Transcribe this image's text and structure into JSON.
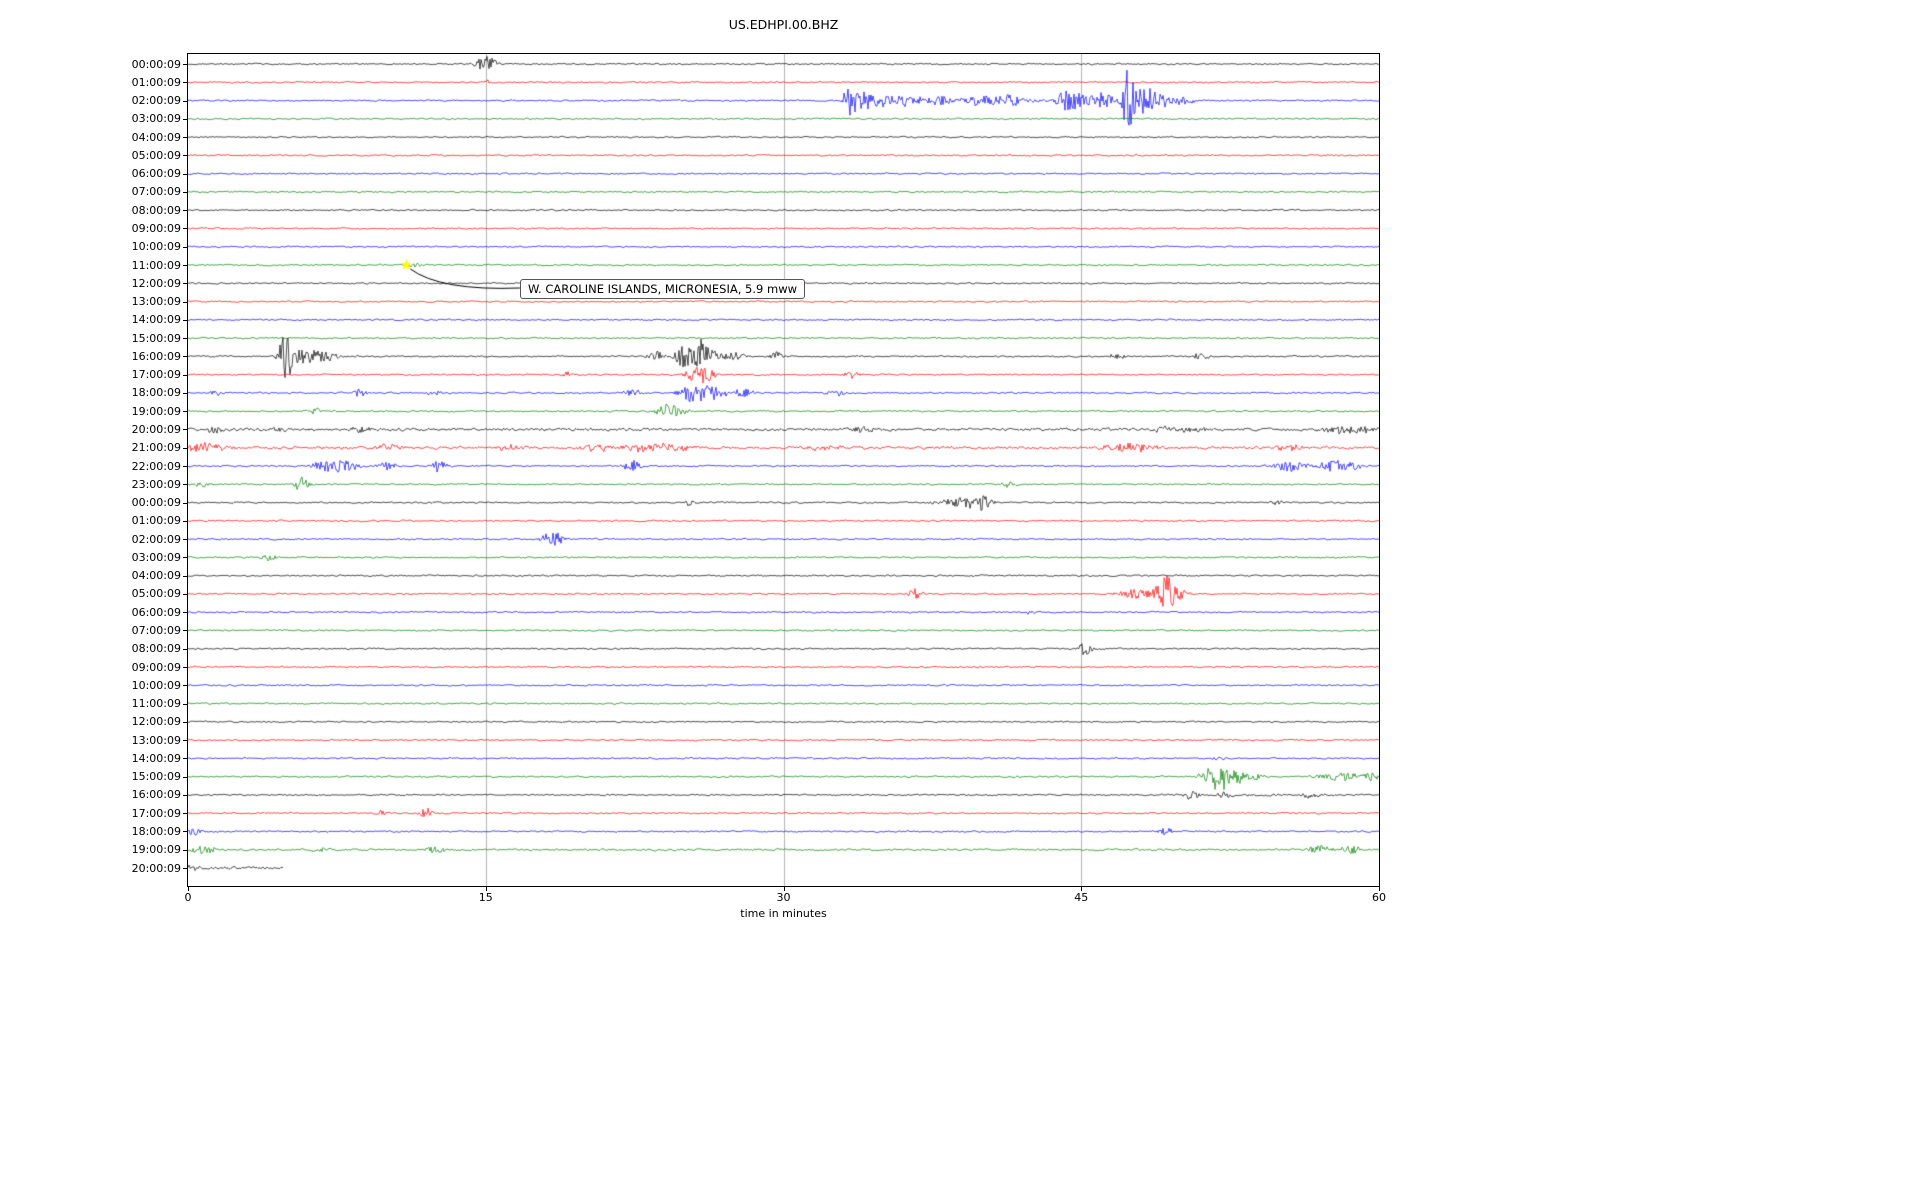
{
  "title": "US.EDHPI.00.BHZ",
  "xlabel": "time in minutes",
  "annotation": {
    "text": "W. CAROLINE ISLANDS, MICRONESIA, 5.9 mww",
    "row": 11,
    "t_minutes": 11,
    "marker": "star-icon",
    "marker_color": "#ffff00"
  },
  "chart_data": {
    "type": "line",
    "subtype": "helicorder-dayplot",
    "station": "US.EDHPI.00.BHZ",
    "xlim": [
      0,
      60
    ],
    "x_ticks": [
      0,
      15,
      30,
      45,
      60
    ],
    "grid_x": [
      15,
      30,
      45
    ],
    "trace_color_cycle": [
      "#000000",
      "#ff0000",
      "#0000ff",
      "#008000"
    ],
    "rows": [
      {
        "label": "00:00:09",
        "color": "#000000",
        "events": [
          {
            "t": 14.9,
            "a": 7,
            "w": 0.3
          },
          {
            "t": 15.3,
            "a": 5,
            "w": 0.2
          }
        ]
      },
      {
        "label": "01:00:09",
        "color": "#ff0000",
        "events": [
          {
            "t": 15.1,
            "a": 2,
            "w": 0.15
          }
        ]
      },
      {
        "label": "02:00:09",
        "color": "#0000ff",
        "bands": [
          {
            "f": 32.5,
            "to": 51,
            "m": 2.0
          }
        ],
        "events": [
          {
            "t": 33.3,
            "a": 30,
            "w": 0.15
          },
          {
            "t": 33.8,
            "a": 8,
            "w": 0.4
          },
          {
            "t": 34.8,
            "a": 6,
            "w": 0.6
          },
          {
            "t": 36.2,
            "a": 5,
            "w": 0.5
          },
          {
            "t": 37.8,
            "a": 5,
            "w": 0.5
          },
          {
            "t": 39.7,
            "a": 8,
            "w": 0.4
          },
          {
            "t": 41.3,
            "a": 6,
            "w": 0.6
          },
          {
            "t": 44.3,
            "a": 11,
            "w": 0.4
          },
          {
            "t": 45.0,
            "a": 6,
            "w": 0.5
          },
          {
            "t": 46.2,
            "a": 10,
            "w": 0.3
          },
          {
            "t": 47.35,
            "a": 34,
            "w": 0.18
          },
          {
            "t": 48.0,
            "a": 12,
            "w": 0.4
          },
          {
            "t": 48.7,
            "a": 8,
            "w": 0.4
          },
          {
            "t": 49.8,
            "a": 4,
            "w": 0.6
          }
        ]
      },
      {
        "label": "03:00:09",
        "color": "#008000",
        "events": []
      },
      {
        "label": "04:00:09",
        "color": "#000000",
        "events": []
      },
      {
        "label": "05:00:09",
        "color": "#ff0000",
        "events": []
      },
      {
        "label": "06:00:09",
        "color": "#0000ff",
        "events": []
      },
      {
        "label": "07:00:09",
        "color": "#008000",
        "events": []
      },
      {
        "label": "08:00:09",
        "color": "#000000",
        "events": []
      },
      {
        "label": "09:00:09",
        "color": "#ff0000",
        "events": []
      },
      {
        "label": "10:00:09",
        "color": "#0000ff",
        "events": []
      },
      {
        "label": "11:00:09",
        "color": "#008000",
        "events": [
          {
            "t": 11.3,
            "a": 2,
            "w": 0.5
          }
        ]
      },
      {
        "label": "12:00:09",
        "color": "#000000",
        "events": []
      },
      {
        "label": "13:00:09",
        "color": "#ff0000",
        "events": []
      },
      {
        "label": "14:00:09",
        "color": "#0000ff",
        "events": []
      },
      {
        "label": "15:00:09",
        "color": "#008000",
        "events": []
      },
      {
        "label": "16:00:09",
        "color": "#000000",
        "bands": [
          {
            "f": 4.5,
            "to": 9,
            "m": 1.5
          }
        ],
        "events": [
          {
            "t": 4.9,
            "a": 24,
            "w": 0.2
          },
          {
            "t": 5.3,
            "a": 8,
            "w": 0.4
          },
          {
            "t": 6.2,
            "a": 5,
            "w": 0.5
          },
          {
            "t": 7.0,
            "a": 4,
            "w": 0.4
          },
          {
            "t": 23.5,
            "a": 6,
            "w": 0.3
          },
          {
            "t": 25.0,
            "a": 12,
            "w": 0.3
          },
          {
            "t": 25.8,
            "a": 16,
            "w": 0.25
          },
          {
            "t": 26.4,
            "a": 7,
            "w": 0.3
          },
          {
            "t": 27.5,
            "a": 4,
            "w": 0.4
          },
          {
            "t": 29.7,
            "a": 4,
            "w": 0.3
          },
          {
            "t": 46.8,
            "a": 3,
            "w": 0.3
          },
          {
            "t": 51.0,
            "a": 3,
            "w": 0.3
          }
        ]
      },
      {
        "label": "17:00:09",
        "color": "#ff0000",
        "events": [
          {
            "t": 19.0,
            "a": 3,
            "w": 0.2
          },
          {
            "t": 25.6,
            "a": 7,
            "w": 0.4
          },
          {
            "t": 26.2,
            "a": 5,
            "w": 0.3
          },
          {
            "t": 33.4,
            "a": 5,
            "w": 0.25
          }
        ]
      },
      {
        "label": "18:00:09",
        "color": "#0000ff",
        "events": [
          {
            "t": 1.4,
            "a": 3,
            "w": 0.2
          },
          {
            "t": 8.6,
            "a": 4,
            "w": 0.3
          },
          {
            "t": 12.4,
            "a": 3,
            "w": 0.25
          },
          {
            "t": 22.4,
            "a": 4,
            "w": 0.3
          },
          {
            "t": 25.5,
            "a": 10,
            "w": 0.5
          },
          {
            "t": 26.6,
            "a": 6,
            "w": 0.4
          },
          {
            "t": 28.0,
            "a": 4,
            "w": 0.4
          },
          {
            "t": 32.6,
            "a": 4,
            "w": 0.3
          }
        ]
      },
      {
        "label": "19:00:09",
        "color": "#008000",
        "events": [
          {
            "t": 6.4,
            "a": 4,
            "w": 0.2
          },
          {
            "t": 24.0,
            "a": 8,
            "w": 0.3
          },
          {
            "t": 24.7,
            "a": 5,
            "w": 0.3
          }
        ]
      },
      {
        "label": "20:00:09",
        "color": "#000000",
        "bands": [
          {
            "f": 0,
            "to": 60,
            "m": 1.8
          }
        ],
        "events": [
          {
            "t": 1.3,
            "a": 4,
            "w": 0.3
          },
          {
            "t": 4.6,
            "a": 3,
            "w": 0.3
          },
          {
            "t": 8.7,
            "a": 4,
            "w": 0.3
          },
          {
            "t": 34.0,
            "a": 4,
            "w": 0.4
          },
          {
            "t": 50.0,
            "a": 3,
            "w": 1.2
          },
          {
            "t": 58.5,
            "a": 4,
            "w": 1.0
          }
        ]
      },
      {
        "label": "21:00:09",
        "color": "#ff0000",
        "bands": [
          {
            "f": 0,
            "to": 60,
            "m": 1.8
          }
        ],
        "events": [
          {
            "t": 0.8,
            "a": 5,
            "w": 0.8
          },
          {
            "t": 10.0,
            "a": 4,
            "w": 0.5
          },
          {
            "t": 16.2,
            "a": 4,
            "w": 0.4
          },
          {
            "t": 20.5,
            "a": 4,
            "w": 0.5
          },
          {
            "t": 23.5,
            "a": 4,
            "w": 1.2
          },
          {
            "t": 32.0,
            "a": 3,
            "w": 0.6
          },
          {
            "t": 47.5,
            "a": 4,
            "w": 1.0
          },
          {
            "t": 55.5,
            "a": 3,
            "w": 0.6
          }
        ]
      },
      {
        "label": "22:00:09",
        "color": "#0000ff",
        "events": [
          {
            "t": 7.0,
            "a": 5,
            "w": 0.6
          },
          {
            "t": 8.0,
            "a": 4,
            "w": 0.5
          },
          {
            "t": 10.0,
            "a": 4,
            "w": 0.4
          },
          {
            "t": 12.6,
            "a": 6,
            "w": 0.3
          },
          {
            "t": 22.4,
            "a": 6,
            "w": 0.3
          },
          {
            "t": 55.5,
            "a": 5,
            "w": 0.6
          },
          {
            "t": 57.6,
            "a": 7,
            "w": 0.4
          },
          {
            "t": 58.6,
            "a": 4,
            "w": 0.4
          }
        ]
      },
      {
        "label": "23:00:09",
        "color": "#008000",
        "events": [
          {
            "t": 0.6,
            "a": 4,
            "w": 0.3
          },
          {
            "t": 5.7,
            "a": 9,
            "w": 0.25
          },
          {
            "t": 41.3,
            "a": 4,
            "w": 0.25
          }
        ]
      },
      {
        "label": "00:00:09",
        "color": "#000000",
        "events": [
          {
            "t": 25.3,
            "a": 4,
            "w": 0.2
          },
          {
            "t": 39.0,
            "a": 5,
            "w": 0.8
          },
          {
            "t": 40.0,
            "a": 7,
            "w": 0.3
          },
          {
            "t": 54.8,
            "a": 3,
            "w": 0.2
          }
        ]
      },
      {
        "label": "01:00:09",
        "color": "#ff0000",
        "events": []
      },
      {
        "label": "02:00:09",
        "color": "#0000ff",
        "events": [
          {
            "t": 18.4,
            "a": 8,
            "w": 0.4
          }
        ]
      },
      {
        "label": "03:00:09",
        "color": "#008000",
        "events": [
          {
            "t": 4.1,
            "a": 4,
            "w": 0.25
          }
        ]
      },
      {
        "label": "04:00:09",
        "color": "#000000",
        "events": []
      },
      {
        "label": "05:00:09",
        "color": "#ff0000",
        "events": [
          {
            "t": 36.6,
            "a": 6,
            "w": 0.25
          },
          {
            "t": 48.0,
            "a": 5,
            "w": 0.8
          },
          {
            "t": 49.2,
            "a": 15,
            "w": 0.3
          },
          {
            "t": 49.8,
            "a": 6,
            "w": 0.4
          }
        ]
      },
      {
        "label": "06:00:09",
        "color": "#0000ff",
        "events": [
          {
            "t": 42.5,
            "a": 3,
            "w": 0.15
          }
        ]
      },
      {
        "label": "07:00:09",
        "color": "#008000",
        "events": []
      },
      {
        "label": "08:00:09",
        "color": "#000000",
        "events": [
          {
            "t": 45.2,
            "a": 7,
            "w": 0.25
          }
        ]
      },
      {
        "label": "09:00:09",
        "color": "#ff0000",
        "events": []
      },
      {
        "label": "10:00:09",
        "color": "#0000ff",
        "events": []
      },
      {
        "label": "11:00:09",
        "color": "#008000",
        "events": []
      },
      {
        "label": "12:00:09",
        "color": "#000000",
        "events": []
      },
      {
        "label": "13:00:09",
        "color": "#ff0000",
        "events": []
      },
      {
        "label": "14:00:09",
        "color": "#0000ff",
        "events": [
          {
            "t": 52.0,
            "a": 2,
            "w": 0.3
          }
        ]
      },
      {
        "label": "15:00:09",
        "color": "#008000",
        "events": [
          {
            "t": 51.8,
            "a": 12,
            "w": 0.5
          },
          {
            "t": 52.6,
            "a": 7,
            "w": 0.4
          },
          {
            "t": 53.6,
            "a": 4,
            "w": 0.4
          },
          {
            "t": 58.0,
            "a": 4,
            "w": 0.8
          },
          {
            "t": 59.6,
            "a": 4,
            "w": 0.3
          }
        ]
      },
      {
        "label": "16:00:09",
        "color": "#000000",
        "bands": [
          {
            "f": 49,
            "to": 58,
            "m": 1.6
          }
        ],
        "events": [
          {
            "t": 50.6,
            "a": 4,
            "w": 0.3
          },
          {
            "t": 52.2,
            "a": 3,
            "w": 0.3
          },
          {
            "t": 56.5,
            "a": 4,
            "w": 0.3
          }
        ]
      },
      {
        "label": "17:00:09",
        "color": "#ff0000",
        "events": [
          {
            "t": 9.7,
            "a": 3,
            "w": 0.2
          },
          {
            "t": 12.0,
            "a": 5,
            "w": 0.25
          }
        ]
      },
      {
        "label": "18:00:09",
        "color": "#0000ff",
        "events": [
          {
            "t": 0.3,
            "a": 4,
            "w": 0.3
          },
          {
            "t": 49.3,
            "a": 6,
            "w": 0.25
          }
        ]
      },
      {
        "label": "19:00:09",
        "color": "#008000",
        "bands": [
          {
            "f": 0,
            "to": 60,
            "m": 1.3
          }
        ],
        "events": [
          {
            "t": 0.8,
            "a": 5,
            "w": 0.4
          },
          {
            "t": 6.7,
            "a": 3,
            "w": 0.3
          },
          {
            "t": 12.5,
            "a": 4,
            "w": 0.3
          },
          {
            "t": 57.0,
            "a": 4,
            "w": 0.5
          },
          {
            "t": 58.6,
            "a": 4,
            "w": 0.4
          }
        ]
      },
      {
        "label": "20:00:09",
        "color": "#000000",
        "end": 4.8,
        "bands": [
          {
            "f": 0,
            "to": 4.8,
            "m": 1.6
          }
        ],
        "events": [
          {
            "t": 0.3,
            "a": 3,
            "w": 0.3
          }
        ]
      }
    ]
  }
}
